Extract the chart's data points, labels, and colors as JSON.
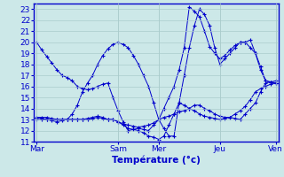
{
  "title": "Température (°c)",
  "background_color": "#cce8e8",
  "grid_color": "#aacccc",
  "line_color": "#0000cc",
  "x_tick_positions": [
    0,
    32,
    64,
    96,
    128
  ],
  "x_labels": [
    "Mar",
    "Sam",
    "Mer",
    "Jeu",
    "Ven"
  ],
  "ylim": [
    11,
    23.5
  ],
  "yticks": [
    11,
    12,
    13,
    14,
    15,
    16,
    17,
    18,
    19,
    20,
    21,
    22,
    23
  ],
  "n_points": 48,
  "lines": [
    [
      20.0,
      19.3,
      18.7,
      18.1,
      17.5,
      17.0,
      16.8,
      16.5,
      16.0,
      15.8,
      15.7,
      15.8,
      16.0,
      16.2,
      16.3,
      15.0,
      13.8,
      12.8,
      12.0,
      12.1,
      12.2,
      12.1,
      12.0,
      12.5,
      13.0,
      14.0,
      15.0,
      16.0,
      17.5,
      19.5,
      23.2,
      22.8,
      22.3,
      21.0,
      19.6,
      19.0,
      18.5,
      18.8,
      19.3,
      19.7,
      20.0,
      20.0,
      19.5,
      19.0,
      17.8,
      16.5,
      16.4,
      16.3
    ],
    [
      13.2,
      13.2,
      13.2,
      13.1,
      13.0,
      13.0,
      13.0,
      13.0,
      13.0,
      13.0,
      13.1,
      13.2,
      13.3,
      13.2,
      13.0,
      13.0,
      12.8,
      12.6,
      12.5,
      12.4,
      12.3,
      12.4,
      12.5,
      12.7,
      13.0,
      13.2,
      13.3,
      13.5,
      13.7,
      13.8,
      14.0,
      14.3,
      14.3,
      14.0,
      13.8,
      13.5,
      13.3,
      13.2,
      13.2,
      13.1,
      13.0,
      13.5,
      14.0,
      14.5,
      15.5,
      16.3,
      16.4,
      16.5
    ],
    [
      13.2,
      13.1,
      13.0,
      13.0,
      13.0,
      13.0,
      13.0,
      13.0,
      13.0,
      13.0,
      13.0,
      13.1,
      13.2,
      13.1,
      13.0,
      13.0,
      12.8,
      12.5,
      12.2,
      12.1,
      12.0,
      11.8,
      11.5,
      11.4,
      11.2,
      11.5,
      12.5,
      13.5,
      14.5,
      14.3,
      14.0,
      13.8,
      13.5,
      13.3,
      13.2,
      13.1,
      13.0,
      13.1,
      13.2,
      13.5,
      13.8,
      14.2,
      14.8,
      15.5,
      15.8,
      16.0,
      16.2,
      16.3
    ],
    [
      13.0,
      13.0,
      13.0,
      12.9,
      12.8,
      12.9,
      13.0,
      13.5,
      14.3,
      15.5,
      16.3,
      17.0,
      18.0,
      18.8,
      19.4,
      19.8,
      20.0,
      19.8,
      19.5,
      18.8,
      18.0,
      17.0,
      16.0,
      14.5,
      13.0,
      12.2,
      11.5,
      11.5,
      14.5,
      17.0,
      19.5,
      21.5,
      23.0,
      22.5,
      21.5,
      19.5,
      18.0,
      18.5,
      19.0,
      19.5,
      20.0,
      20.0,
      20.2,
      19.0,
      17.5,
      16.5,
      16.4,
      16.3
    ]
  ]
}
